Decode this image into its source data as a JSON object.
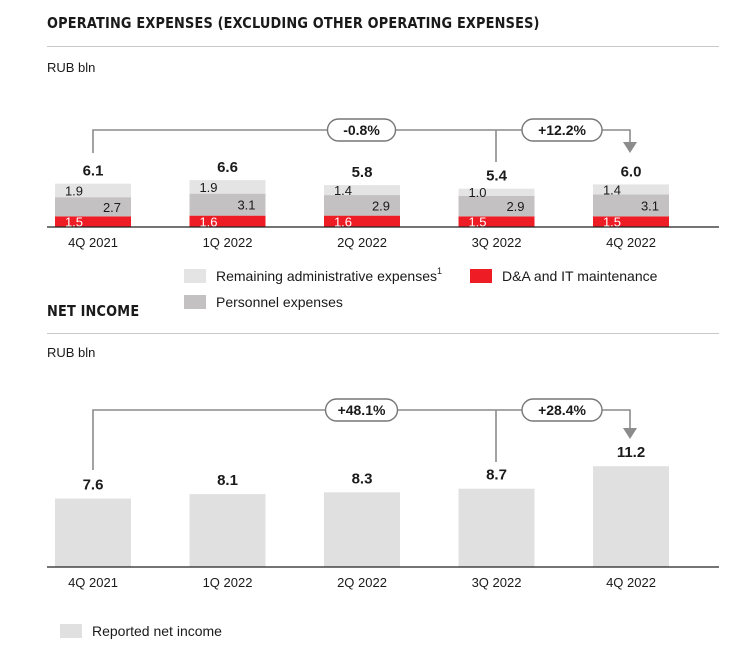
{
  "colors": {
    "remaining": "#e4e4e4",
    "personnel": "#c4c1c2",
    "da_it": "#ee1c25",
    "net_income": "#e0e0e0",
    "connector": "#8c8c8c"
  },
  "opex": {
    "title": "OPERATING EXPENSES (EXCLUDING OTHER OPERATING EXPENSES)",
    "unit": "RUB bln",
    "legend": {
      "remaining": "Remaining administrative expenses",
      "remaining_sup": "1",
      "da_it": "D&A and IT maintenance",
      "personnel": "Personnel expenses"
    }
  },
  "net_income": {
    "title": "NET INCOME",
    "unit": "RUB bln",
    "legend": {
      "reported": "Reported net income"
    }
  },
  "chart_data": [
    {
      "type": "bar",
      "stacked": true,
      "categories": [
        "4Q 2021",
        "1Q 2022",
        "2Q 2022",
        "3Q 2022",
        "4Q 2022"
      ],
      "series": [
        {
          "name": "D&A and IT maintenance",
          "values": [
            1.5,
            1.6,
            1.6,
            1.5,
            1.5
          ]
        },
        {
          "name": "Personnel expenses",
          "values": [
            2.7,
            3.1,
            2.9,
            2.9,
            3.1
          ]
        },
        {
          "name": "Remaining administrative expenses",
          "values": [
            1.9,
            1.9,
            1.4,
            1.0,
            1.4
          ]
        }
      ],
      "totals": [
        "6.1",
        "6.6",
        "5.8",
        "5.4",
        "6.0"
      ],
      "labels": {
        "da_it": [
          "1.5",
          "1.6",
          "1.6",
          "1.5",
          "1.5"
        ],
        "personnel": [
          "2.7",
          "3.1",
          "2.9",
          "2.9",
          "3.1"
        ],
        "remaining": [
          "1.9",
          "1.9",
          "1.4",
          "1.0",
          "1.4"
        ]
      },
      "changes": [
        {
          "from": "4Q 2021",
          "to": "4Q 2022",
          "label": "-0.8%"
        },
        {
          "from": "3Q 2022",
          "to": "4Q 2022",
          "label": "+12.2%"
        }
      ]
    },
    {
      "type": "bar",
      "categories": [
        "4Q 2021",
        "1Q 2022",
        "2Q 2022",
        "3Q 2022",
        "4Q 2022"
      ],
      "series": [
        {
          "name": "Reported net income",
          "values": [
            7.6,
            8.1,
            8.3,
            8.7,
            11.2
          ]
        }
      ],
      "value_labels": [
        "7.6",
        "8.1",
        "8.3",
        "8.7",
        "11.2"
      ],
      "changes": [
        {
          "from": "4Q 2021",
          "to": "4Q 2022",
          "label": "+48.1%"
        },
        {
          "from": "3Q 2022",
          "to": "4Q 2022",
          "label": "+28.4%"
        }
      ]
    }
  ]
}
